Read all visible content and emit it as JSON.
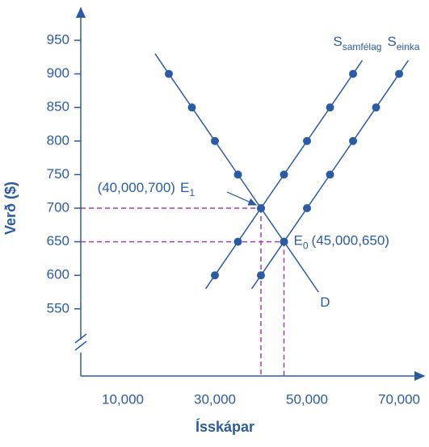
{
  "chart_data": {
    "type": "line",
    "x_label": "Ísskápar",
    "y_label": "Verð ($)",
    "xlim": [
      0,
      75000
    ],
    "xticks": [
      {
        "value": 10000,
        "label": "10,000"
      },
      {
        "value": 30000,
        "label": "30,000"
      },
      {
        "value": 50000,
        "label": "50,000"
      },
      {
        "value": 70000,
        "label": "70,000"
      }
    ],
    "ylim": [
      450,
      1000
    ],
    "yticks": [
      550,
      600,
      650,
      700,
      750,
      800,
      850,
      900,
      950
    ],
    "color": "#2b5ba3",
    "series": [
      {
        "name": "D",
        "x": [
          20000,
          25000,
          30000,
          35000,
          40000,
          45000
        ],
        "values": [
          900,
          850,
          800,
          750,
          700,
          650
        ]
      },
      {
        "name": "S",
        "subscript": "samfélag",
        "x": [
          30000,
          35000,
          40000,
          45000,
          50000,
          55000,
          60000
        ],
        "values": [
          600,
          650,
          700,
          750,
          800,
          850,
          900
        ]
      },
      {
        "name": "S",
        "subscript": "einka",
        "x": [
          40000,
          45000,
          50000,
          55000,
          60000,
          65000,
          70000
        ],
        "values": [
          600,
          650,
          700,
          750,
          800,
          850,
          900
        ]
      }
    ],
    "equilibria": [
      {
        "coord": "(40,000,700)",
        "label": "E",
        "sub": "1",
        "x": 40000,
        "y": 700
      },
      {
        "label": "E",
        "sub": "0",
        "coord": "(45,000,650)",
        "x": 45000,
        "y": 650
      }
    ],
    "guide_color": "#a040a8"
  }
}
